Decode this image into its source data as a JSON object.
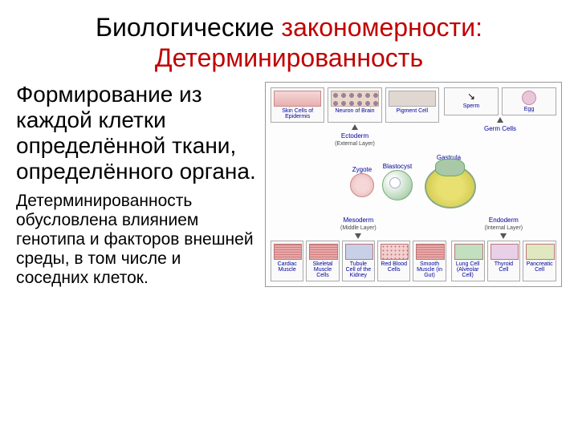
{
  "title": {
    "part1": "Биологические ",
    "part2": "закономерности",
    "part3": ": Детерминированность"
  },
  "main_text": "Формирование из каждой клетки определённой ткани, определённого органа.",
  "sub_text": "Детерминированность обусловлена влиянием генотипа и факторов внешней среды, в том числе и соседних клеток.",
  "diagram": {
    "top": {
      "ectoderm": {
        "cells": [
          "Skin Cells of Epidermis",
          "Neuron of Brain",
          "Pigment Cell"
        ],
        "layer_label": "Ectoderm",
        "layer_sub": "(External Layer)"
      },
      "germ": {
        "cells": [
          "Sperm",
          "Egg"
        ],
        "layer_label": "Germ Cells"
      }
    },
    "mid": {
      "zygote": "Zygote",
      "blastocyst": "Blastocyst",
      "gastrula": "Gastrula"
    },
    "bottom": {
      "mesoderm": {
        "cells": [
          "Cardiac Muscle",
          "Skeletal Muscle Cells",
          "Tubule Cell of the Kidney",
          "Red Blood Cells",
          "Smooth Muscle (in Gut)"
        ],
        "layer_label": "Mesoderm",
        "layer_sub": "(Middle Layer)"
      },
      "endoderm": {
        "cells": [
          "Lung Cell (Alveolar Cell)",
          "Thyroid Cell",
          "Pancreatic Cell"
        ],
        "layer_label": "Endoderm",
        "layer_sub": "(Internal Layer)"
      }
    }
  },
  "colors": {
    "title_red": "#c00000",
    "label_blue": "#000099"
  }
}
